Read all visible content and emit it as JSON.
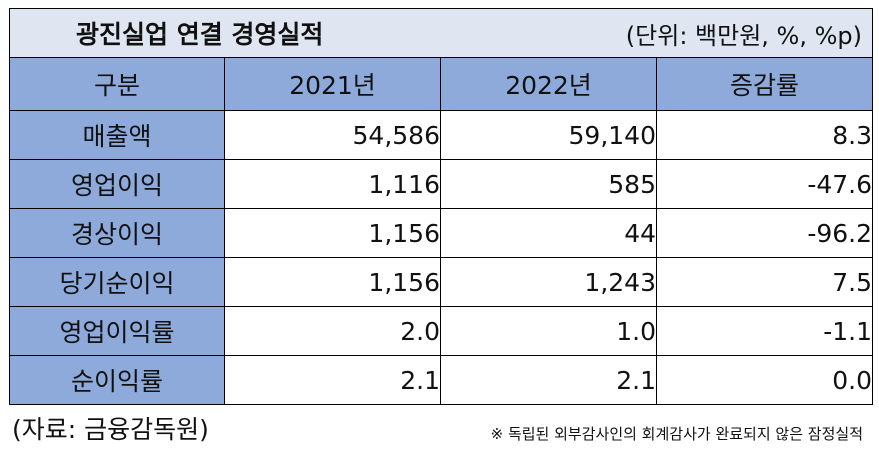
{
  "title": "광진실업 연결 경영실적",
  "unit": "(단위: 백만원, %, %p)",
  "headers": [
    "구분",
    "2021년",
    "2022년",
    "증감률"
  ],
  "rows": [
    {
      "label": "매출액",
      "y2021": "54,586",
      "y2022": "59,140",
      "change": "8.3"
    },
    {
      "label": "영업이익",
      "y2021": "1,116",
      "y2022": "585",
      "change": "-47.6"
    },
    {
      "label": "경상이익",
      "y2021": "1,156",
      "y2022": "44",
      "change": "-96.2"
    },
    {
      "label": "당기순이익",
      "y2021": "1,156",
      "y2022": "1,243",
      "change": "7.5"
    },
    {
      "label": "영업이익률",
      "y2021": "2.0",
      "y2022": "1.0",
      "change": "-1.1"
    },
    {
      "label": "순이익률",
      "y2021": "2.1",
      "y2022": "2.1",
      "change": "0.0"
    }
  ],
  "source": "(자료: 금융감독원)",
  "note": "※ 독립된 외부감사인의 회계감사가 완료되지 않은 잠정실적",
  "colors": {
    "header_fill": "#8eaadb",
    "title_fill": "#dfe6f2",
    "border": "#000000"
  }
}
